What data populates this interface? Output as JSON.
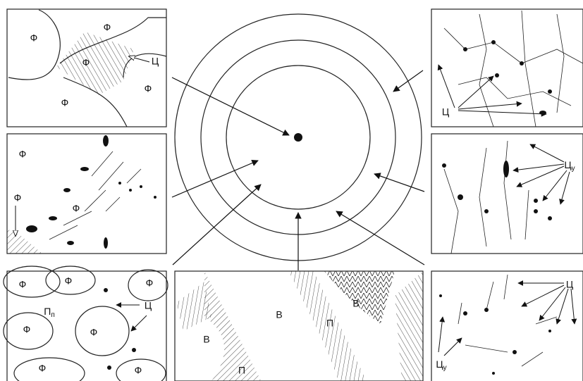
{
  "panels": {
    "top_left": {
      "labels": [
        "Ф",
        "Ф",
        "Ф",
        "Ф",
        "Ф",
        "Ц"
      ]
    },
    "middle_left": {
      "labels": [
        "Ф",
        "Ф",
        "Ф"
      ]
    },
    "bottom_left": {
      "labels": [
        "Ф",
        "Ф",
        "Ф",
        {
          "main": "П",
          "sub": "п"
        },
        "Ц",
        "Ф",
        "Ф",
        "Ф",
        "Ф"
      ]
    },
    "bottom_center": {
      "labels": [
        "В",
        "В",
        "П",
        "П",
        "В"
      ]
    },
    "top_right": {
      "labels": [
        "Ц"
      ]
    },
    "middle_right": {
      "labels": [
        {
          "main": "Ц",
          "sub": "у"
        }
      ]
    },
    "bottom_right": {
      "labels": [
        "Ц",
        {
          "main": "Ц",
          "sub": "у"
        }
      ]
    }
  }
}
